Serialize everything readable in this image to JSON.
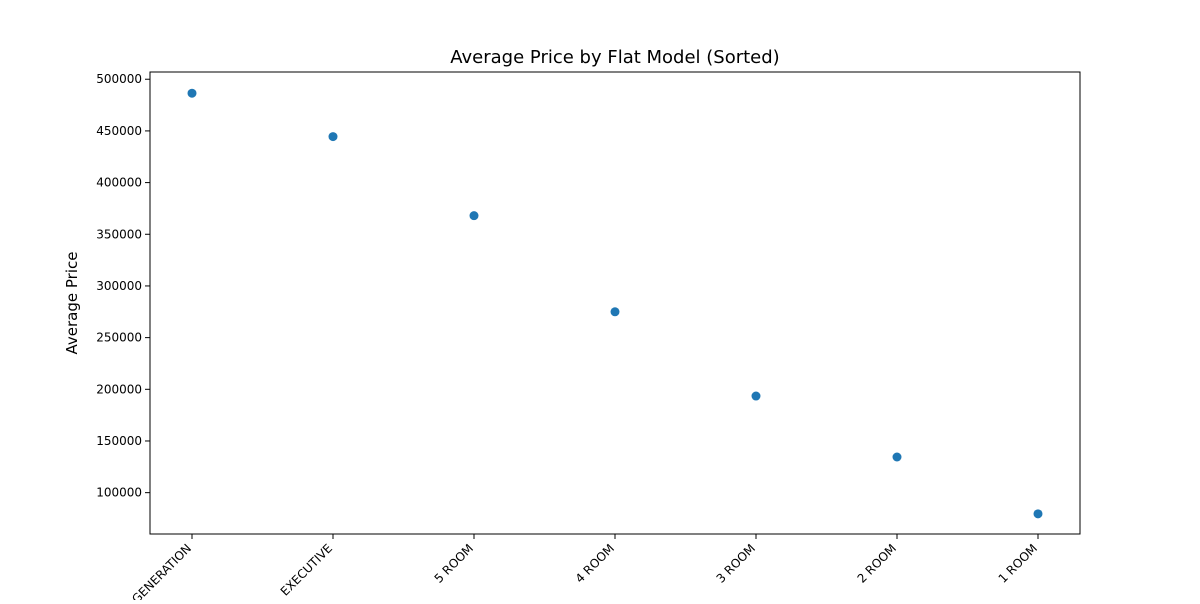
{
  "chart_data": {
    "type": "scatter",
    "title": "Average Price by Flat Model (Sorted)",
    "xlabel": "",
    "ylabel": "Average Price",
    "categories": [
      "MULTI-GENERATION",
      "EXECUTIVE",
      "5 ROOM",
      "4 ROOM",
      "3 ROOM",
      "2 ROOM",
      "1 ROOM"
    ],
    "values": [
      486500,
      444500,
      368000,
      275000,
      193500,
      134500,
      79500
    ],
    "ylim": [
      60000,
      507000
    ],
    "yticks": [
      100000,
      150000,
      200000,
      250000,
      300000,
      350000,
      400000,
      450000,
      500000
    ],
    "ytick_labels": [
      "100000",
      "150000",
      "200000",
      "250000",
      "300000",
      "350000",
      "400000",
      "450000",
      "500000"
    ],
    "marker_color": "#1f77b4",
    "grid": false,
    "legend": "none"
  }
}
